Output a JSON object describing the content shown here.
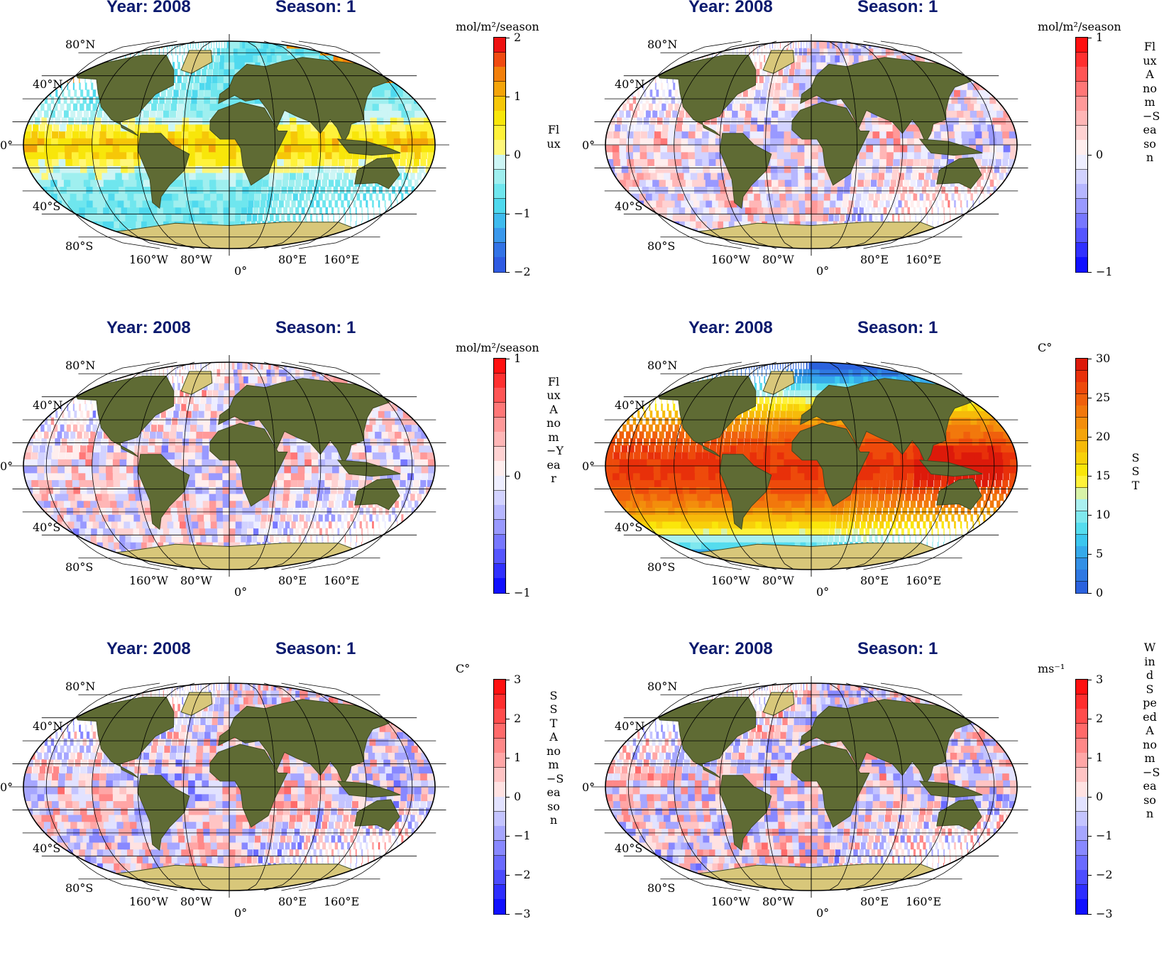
{
  "panels": [
    {
      "id": "p1",
      "year_title": "Year: 2008",
      "season_title": "Season: 1",
      "unit": "mol/m²/season",
      "variable_label": "Flux",
      "colorbar": {
        "ticks": [
          "2",
          "1",
          "0",
          "−1",
          "−2"
        ],
        "colors": [
          "#ee1111",
          "#f04a10",
          "#f27f0a",
          "#f4a409",
          "#f6c708",
          "#f8e60a",
          "#fff23a",
          "#fff77a",
          "#ccf5f5",
          "#9fefef",
          "#6fe6ee",
          "#4fd9ee",
          "#3fbbee",
          "#3a98ec",
          "#3373e6",
          "#2f5be2"
        ]
      },
      "palette": "flux",
      "lat_labels": [
        "80°N",
        "40°N",
        "0°",
        "40°S",
        "80°S"
      ],
      "lon_labels": [
        "160°W",
        "80°W",
        "0°",
        "80°E",
        "160°E"
      ]
    },
    {
      "id": "p2",
      "year_title": "Year: 2008",
      "season_title": "Season: 1",
      "unit": "mol/m²/season",
      "variable_label": "Flux Anom−Season",
      "colorbar": {
        "ticks": [
          "1",
          "0",
          "−1"
        ],
        "colors": [
          "#ff1010",
          "#ff3030",
          "#ff5555",
          "#ff7777",
          "#ff9999",
          "#ffb6b6",
          "#ffd2d2",
          "#ffeeee",
          "#eeeeff",
          "#d2d2ff",
          "#b6b6ff",
          "#9999ff",
          "#7777ff",
          "#5555ff",
          "#3030ff",
          "#1010ff"
        ]
      },
      "palette": "anom",
      "lat_labels": [
        "80°N",
        "40°N",
        "0°",
        "40°S",
        "80°S"
      ],
      "lon_labels": [
        "160°W",
        "80°W",
        "0°",
        "80°E",
        "160°E"
      ]
    },
    {
      "id": "p3",
      "year_title": "Year: 2008",
      "season_title": "Season: 1",
      "unit": "mol/m²/season",
      "variable_label": "Flux Anom−Year",
      "colorbar": {
        "ticks": [
          "1",
          "0",
          "−1"
        ],
        "colors": [
          "#ff1010",
          "#ff3030",
          "#ff5555",
          "#ff7777",
          "#ff9999",
          "#ffb6b6",
          "#ffd2d2",
          "#ffeeee",
          "#eeeeff",
          "#d2d2ff",
          "#b6b6ff",
          "#9999ff",
          "#7777ff",
          "#5555ff",
          "#3030ff",
          "#1010ff"
        ]
      },
      "palette": "anom",
      "lat_labels": [
        "80°N",
        "40°N",
        "0°",
        "40°S",
        "80°S"
      ],
      "lon_labels": [
        "160°W",
        "80°W",
        "0°",
        "80°E",
        "160°E"
      ]
    },
    {
      "id": "p4",
      "year_title": "Year: 2008",
      "season_title": "Season: 1",
      "unit": "C°",
      "variable_label": "SST",
      "colorbar": {
        "ticks": [
          "30",
          "25",
          "20",
          "15",
          "10",
          "5",
          "0"
        ],
        "colors": [
          "#dd1a0a",
          "#e8300a",
          "#ee4a0b",
          "#f0600c",
          "#f2780c",
          "#f38e0c",
          "#f4a40b",
          "#f6ba0a",
          "#f8d00a",
          "#fae60a",
          "#fff23a",
          "#d8f3a8",
          "#aaf0f0",
          "#7fe8ee",
          "#55dcee",
          "#3cc6ee",
          "#36aaea",
          "#3390e6",
          "#2f78e2",
          "#2b62de"
        ]
      },
      "palette": "sst",
      "lat_labels": [
        "80°N",
        "40°N",
        "0°",
        "40°S",
        "80°S"
      ],
      "lon_labels": [
        "160°W",
        "80°W",
        "0°",
        "80°E",
        "160°E"
      ]
    },
    {
      "id": "p5",
      "year_title": "Year: 2008",
      "season_title": "Season: 1",
      "unit": "C°",
      "variable_label": "SST Anom−Season",
      "colorbar": {
        "ticks": [
          "3",
          "2",
          "1",
          "0",
          "−1",
          "−2",
          "−3"
        ],
        "colors": [
          "#ff1010",
          "#ff2e2e",
          "#ff4c4c",
          "#ff6a6a",
          "#ff8888",
          "#ffa6a6",
          "#ffc4c4",
          "#ffe2e2",
          "#e2e2ff",
          "#c4c4ff",
          "#a6a6ff",
          "#8888ff",
          "#6a6aff",
          "#4c4cff",
          "#2e2eff",
          "#1010ff"
        ]
      },
      "palette": "anom",
      "lat_labels": [
        "80°N",
        "40°N",
        "0°",
        "40°S",
        "80°S"
      ],
      "lon_labels": [
        "160°W",
        "80°W",
        "0°",
        "80°E",
        "160°E"
      ]
    },
    {
      "id": "p6",
      "year_title": "Year: 2008",
      "season_title": "Season: 1",
      "unit": "ms⁻¹",
      "variable_label": "Wind Speed Anom−Season",
      "colorbar": {
        "ticks": [
          "3",
          "2",
          "1",
          "0",
          "−1",
          "−2",
          "−3"
        ],
        "colors": [
          "#ff1010",
          "#ff2e2e",
          "#ff4c4c",
          "#ff6a6a",
          "#ff8888",
          "#ffa6a6",
          "#ffc4c4",
          "#ffe2e2",
          "#e2e2ff",
          "#c4c4ff",
          "#a6a6ff",
          "#8888ff",
          "#6a6aff",
          "#4c4cff",
          "#2e2eff",
          "#1010ff"
        ]
      },
      "palette": "anom",
      "lat_labels": [
        "80°N",
        "40°N",
        "0°",
        "40°S",
        "80°S"
      ],
      "lon_labels": [
        "160°W",
        "80°W",
        "0°",
        "80°E",
        "160°E"
      ]
    }
  ],
  "colors": {
    "title": "#0b1a6e",
    "land": "#5f6b34",
    "land_dark": "#3f4a22",
    "ice": "#d8c77a",
    "grid": "#000000"
  }
}
